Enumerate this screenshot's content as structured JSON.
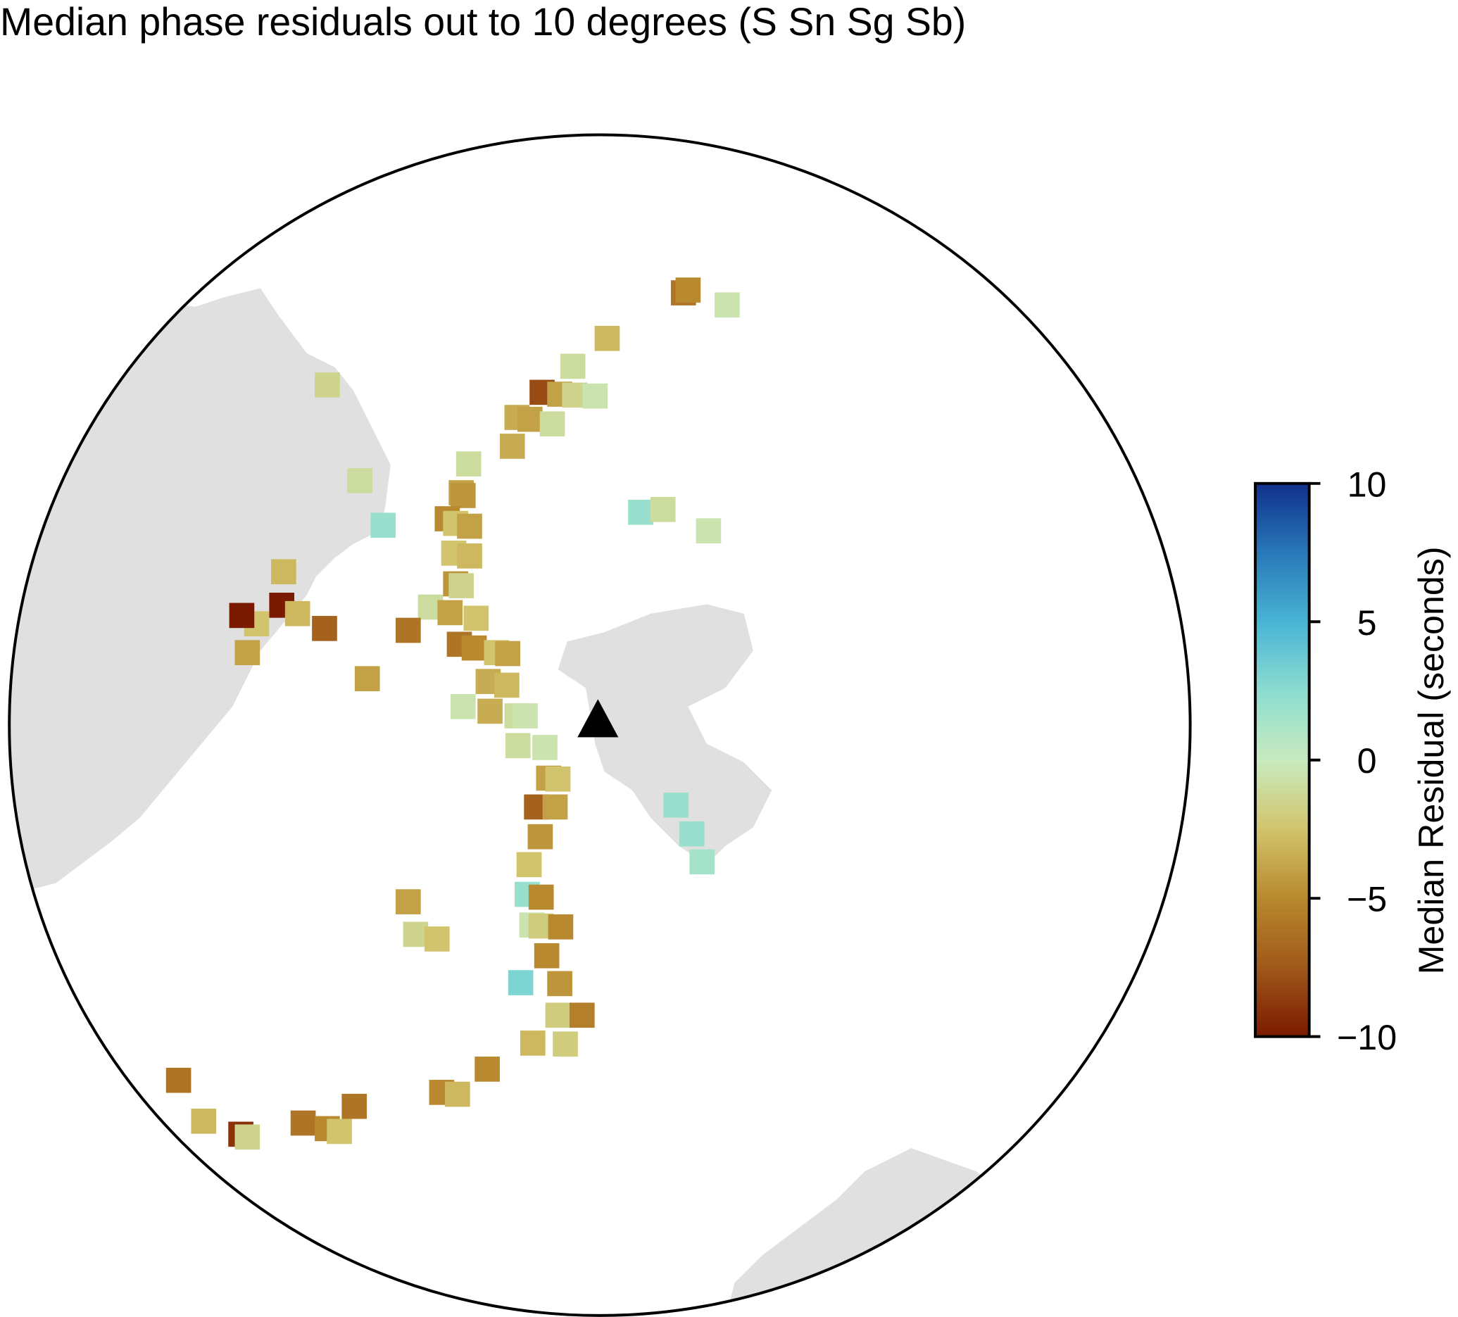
{
  "chart_data": {
    "type": "map",
    "title": "Median phase residuals out to 10 degrees (S Sn Sg Sb)",
    "colorbar_label": "Median Residual (seconds)",
    "clim": [
      -10,
      10
    ],
    "cticks": [
      {
        "value": 10,
        "label": "10"
      },
      5,
      0,
      {
        "value": -5,
        "label": "−5"
      },
      {
        "value": -10,
        "label": "−10"
      }
    ],
    "colormap": [
      "#7a1a00",
      "#a0581a",
      "#b8892e",
      "#d2c46c",
      "#c8ebc0",
      "#8cdcd0",
      "#48b4d4",
      "#2878b8",
      "#10308c"
    ],
    "values": [
      -6,
      -5,
      -0.5,
      -3,
      -1,
      -8,
      -4,
      -1.5,
      -0.5,
      -3.5,
      -4,
      -1,
      -3.5,
      -1.5,
      -1,
      2,
      -1,
      -4,
      -4.5,
      -5,
      -2.5,
      -4,
      -2.5,
      -3,
      -4.5,
      -1.5,
      -1,
      -4,
      -2.5,
      -3,
      -10,
      -3,
      -2.5,
      -10,
      -7,
      -4,
      -6,
      -6,
      -5,
      -2.5,
      -4,
      -3.5,
      -3,
      -0.5,
      -3.5,
      -1,
      -0.5,
      -1,
      -0.5,
      -4,
      -2.5,
      -7,
      -4,
      -4.5,
      -2.5,
      2,
      -5,
      -0.5,
      -2,
      -5,
      -5,
      3,
      -4.5,
      -2,
      -5.5,
      -3,
      -2,
      -5,
      -5,
      -3,
      -4,
      -1.5,
      -2.5,
      -4,
      2,
      -1,
      -0.5,
      2,
      2,
      1.5,
      -6,
      -3,
      -9,
      -1.5,
      -6,
      -5,
      -2.5,
      -6
    ]
  }
}
